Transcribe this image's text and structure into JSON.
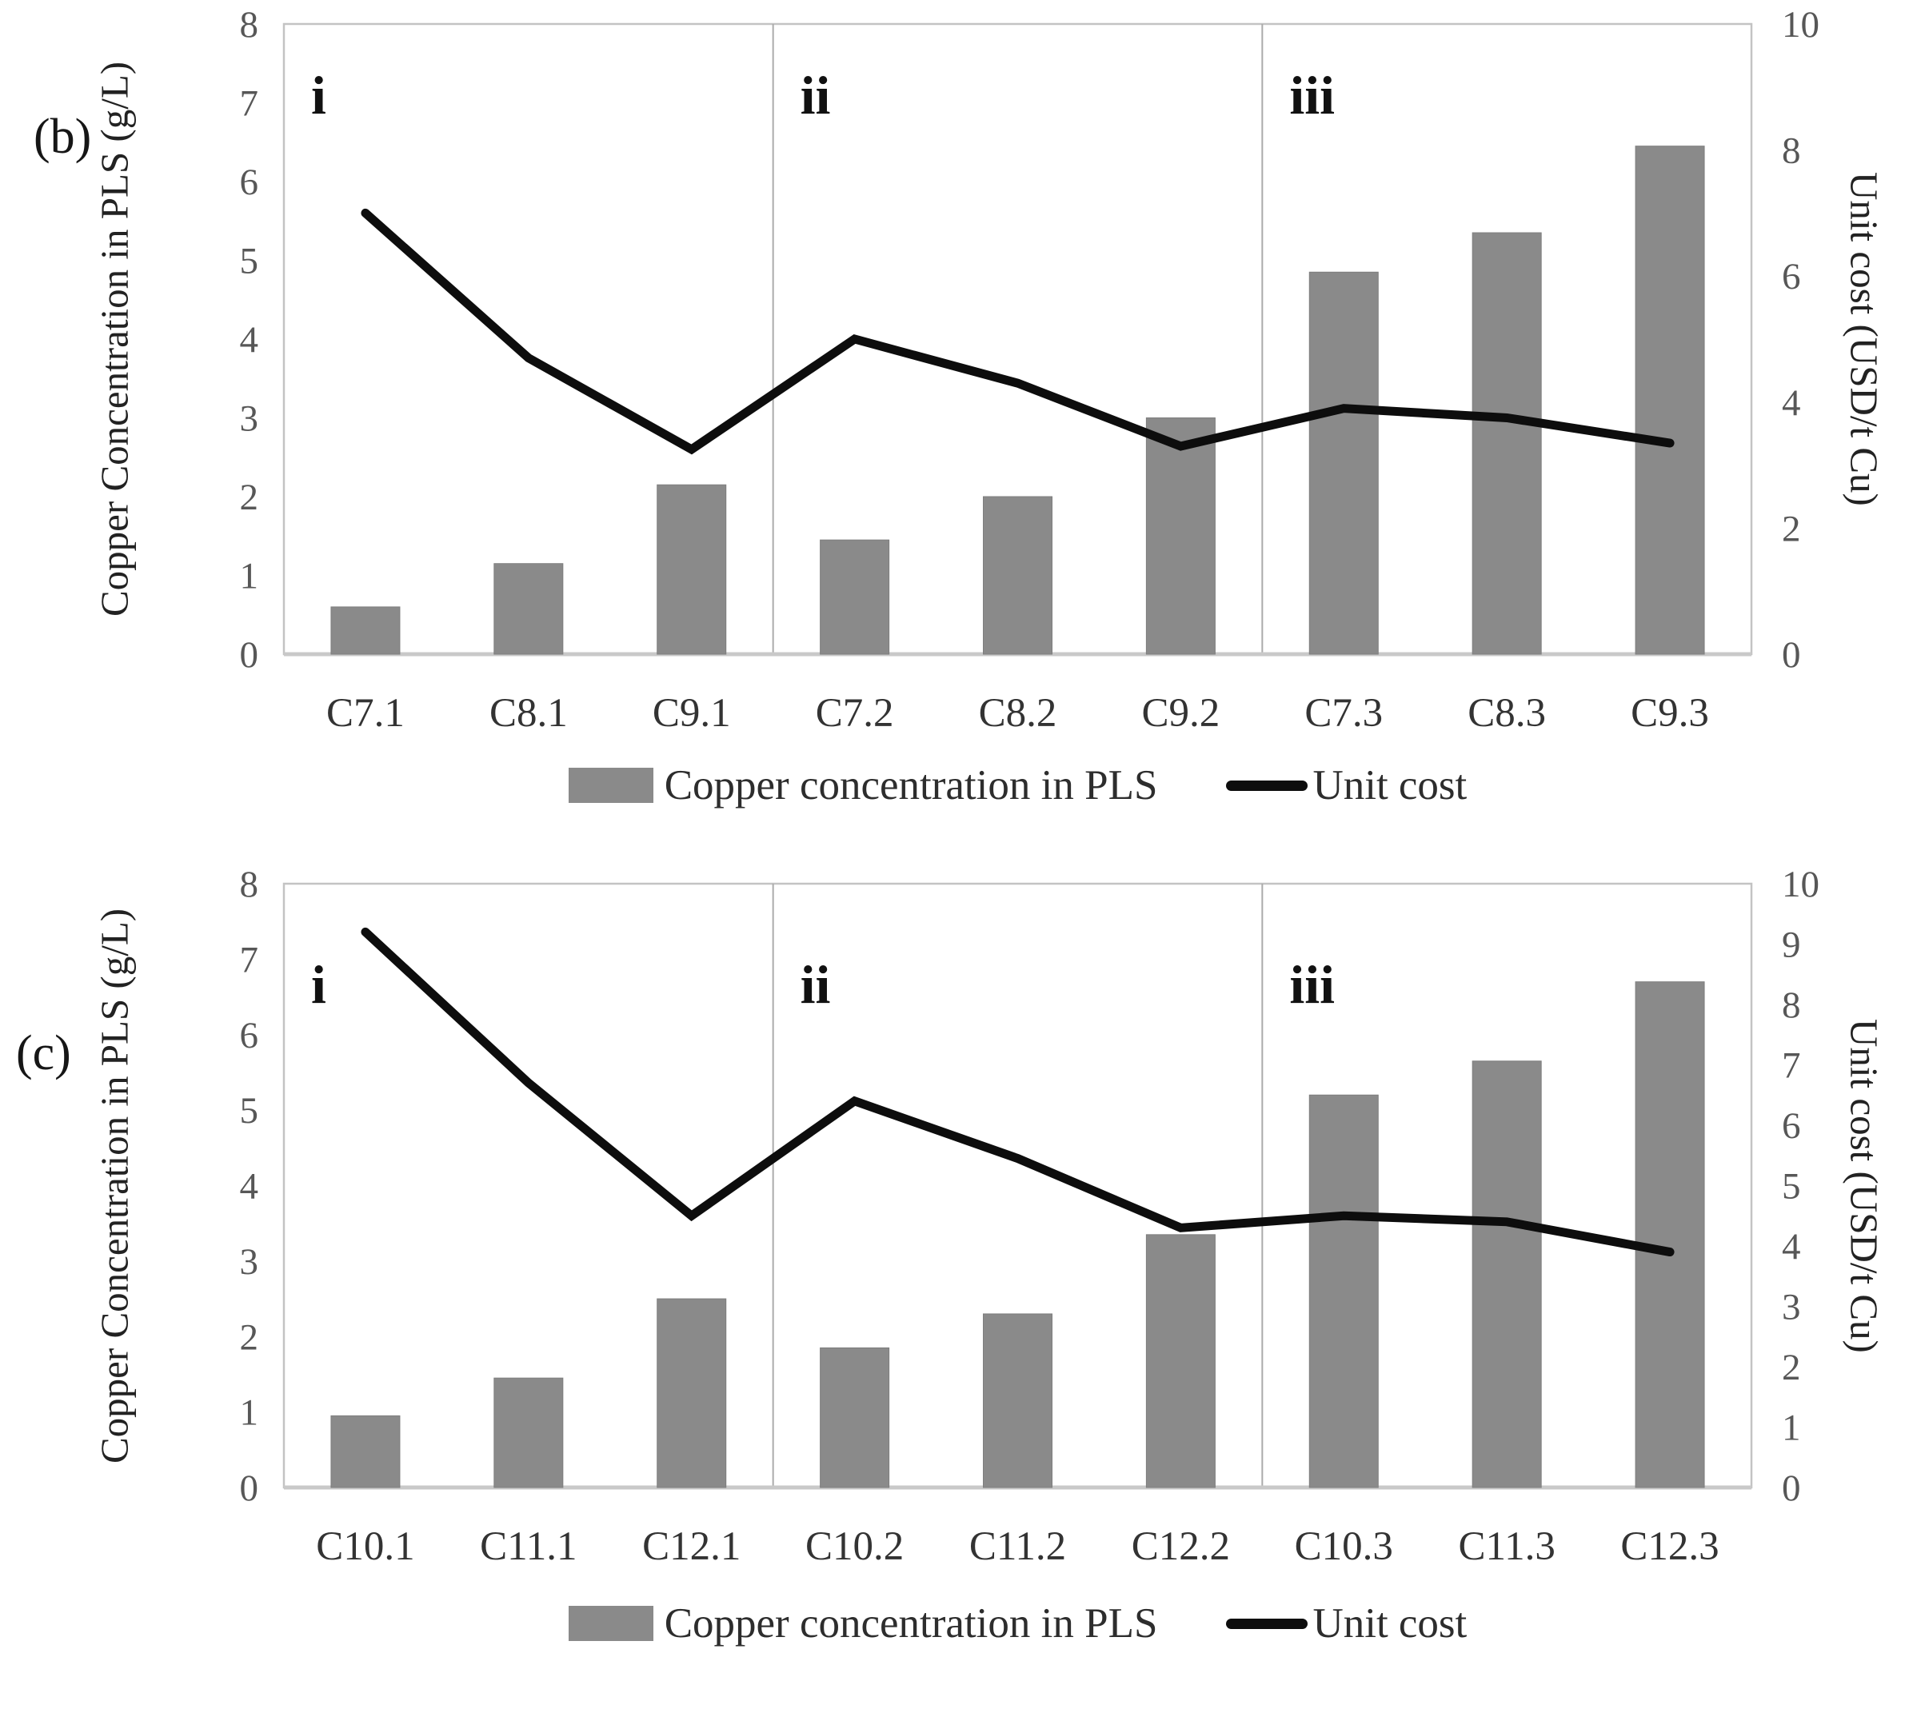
{
  "page_type": "scientific-figure",
  "colors": {
    "bar": "#8a8a8a",
    "line": "#0d0d0d",
    "plot_border": "#c3c3c3",
    "panel_divider": "#ababab",
    "baseline": "#c9c9c9",
    "tick_text": "#575757",
    "category_text": "#333333",
    "panel_label_text": "#111111"
  },
  "chart_data": [
    {
      "type": "bar+line",
      "title": "(b)",
      "panels": [
        "i",
        "ii",
        "iii"
      ],
      "categories": [
        "C7.1",
        "C8.1",
        "C9.1",
        "C7.2",
        "C8.2",
        "C9.2",
        "C7.3",
        "C8.3",
        "C9.3"
      ],
      "series": [
        {
          "name": "Copper concentration in PLS",
          "type": "bar",
          "axis": "left",
          "unit": "g/L",
          "values": [
            0.6,
            1.15,
            2.15,
            1.45,
            2.0,
            3.0,
            4.85,
            5.35,
            6.45
          ]
        },
        {
          "name": "Unit cost",
          "type": "line",
          "axis": "right",
          "unit": "USD/t Cu",
          "values": [
            7.0,
            4.7,
            3.25,
            5.0,
            4.3,
            3.3,
            3.9,
            3.75,
            3.35
          ]
        }
      ],
      "ylabel_left": "Copper Concentration in PLS (g/L)",
      "ylabel_right": "Unit cost (USD/t Cu)",
      "ylim_left": [
        0,
        8
      ],
      "ylim_right": [
        0,
        10
      ],
      "ytick_step_left": 1,
      "ytick_step_right": 2,
      "grid": false,
      "legend_position": "bottom"
    },
    {
      "type": "bar+line",
      "title": "(c)",
      "panels": [
        "i",
        "ii",
        "iii"
      ],
      "categories": [
        "C10.1",
        "C11.1",
        "C12.1",
        "C10.2",
        "C11.2",
        "C12.2",
        "C10.3",
        "C11.3",
        "C12.3"
      ],
      "series": [
        {
          "name": "Copper concentration in PLS",
          "type": "bar",
          "axis": "left",
          "unit": "g/L",
          "values": [
            0.95,
            1.45,
            2.5,
            1.85,
            2.3,
            3.35,
            5.2,
            5.65,
            6.7
          ]
        },
        {
          "name": "Unit cost",
          "type": "line",
          "axis": "right",
          "unit": "USD/t Cu",
          "values": [
            9.2,
            6.7,
            4.5,
            6.4,
            5.45,
            4.3,
            4.5,
            4.4,
            3.9
          ]
        }
      ],
      "ylabel_left": "Copper Concentration in PLS (g/L)",
      "ylabel_right": "Unit cost (USD/t Cu)",
      "ylim_left": [
        0,
        8
      ],
      "ylim_right": [
        0,
        10
      ],
      "ytick_step_left": 1,
      "ytick_step_right": 1,
      "grid": false,
      "legend_position": "bottom"
    }
  ]
}
